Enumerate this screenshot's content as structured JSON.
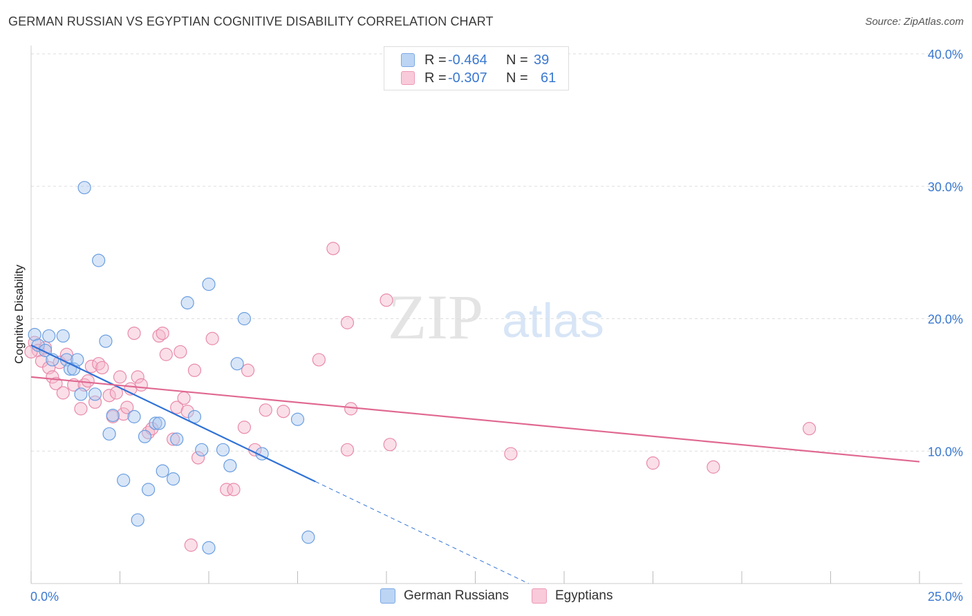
{
  "title": "GERMAN RUSSIAN VS EGYPTIAN COGNITIVE DISABILITY CORRELATION CHART",
  "source": "Source: ZipAtlas.com",
  "watermark": {
    "zip": "ZIP",
    "atlas": "atlas"
  },
  "colors": {
    "blue_fill": "#aac8f0",
    "blue_stroke": "#6a9ee0",
    "blue_line": "#2f72d6",
    "pink_fill": "#f5b8cc",
    "pink_stroke": "#e98aaa",
    "pink_line": "#e06890",
    "axis_text": "#3a78d0",
    "grid": "#dddddd"
  },
  "legend": {
    "rows": [
      {
        "r_label": "R =",
        "r_value": "-0.464",
        "n_label": "N =",
        "n_value": "39"
      },
      {
        "r_label": "R =",
        "r_value": "-0.307",
        "n_label": "N =",
        "n_value": "61"
      }
    ]
  },
  "bottom_legend": {
    "series1": "German Russians",
    "series2": "Egyptians"
  },
  "chart_data": {
    "type": "scatter",
    "title": "GERMAN RUSSIAN VS EGYPTIAN COGNITIVE DISABILITY CORRELATION CHART",
    "xlabel": "",
    "ylabel": "Cognitive Disability",
    "xlim": [
      0,
      25
    ],
    "ylim": [
      0,
      40
    ],
    "x_tick_labels": [
      "0.0%",
      "25.0%"
    ],
    "y_tick_labels": [
      "10.0%",
      "20.0%",
      "30.0%",
      "40.0%"
    ],
    "y_ticks": [
      10,
      20,
      30,
      40
    ],
    "grid": true,
    "legend_position": "top-center",
    "series": [
      {
        "name": "German Russians",
        "color": "#6a9ee0",
        "r": -0.464,
        "n": 39,
        "trend": {
          "x0": 0,
          "y0": 18.0,
          "x1": 8.0,
          "y1": 7.7,
          "dashed_to_x": 14.0,
          "dashed_to_y": 0.0
        },
        "points": [
          [
            0.1,
            18.8
          ],
          [
            0.2,
            18.0
          ],
          [
            0.4,
            17.6
          ],
          [
            0.5,
            18.7
          ],
          [
            0.6,
            16.9
          ],
          [
            0.9,
            18.7
          ],
          [
            1.0,
            16.9
          ],
          [
            1.1,
            16.2
          ],
          [
            1.2,
            16.2
          ],
          [
            1.3,
            16.9
          ],
          [
            1.4,
            14.3
          ],
          [
            1.5,
            29.9
          ],
          [
            1.8,
            14.3
          ],
          [
            1.9,
            24.4
          ],
          [
            2.1,
            18.3
          ],
          [
            2.2,
            11.3
          ],
          [
            2.3,
            12.7
          ],
          [
            2.6,
            7.8
          ],
          [
            2.9,
            12.6
          ],
          [
            3.0,
            4.8
          ],
          [
            3.2,
            11.1
          ],
          [
            3.3,
            7.1
          ],
          [
            3.5,
            12.1
          ],
          [
            3.6,
            12.1
          ],
          [
            3.7,
            8.5
          ],
          [
            4.0,
            7.9
          ],
          [
            4.1,
            10.9
          ],
          [
            4.4,
            21.2
          ],
          [
            4.6,
            12.6
          ],
          [
            4.8,
            10.1
          ],
          [
            5.0,
            2.7
          ],
          [
            5.0,
            22.6
          ],
          [
            5.4,
            10.1
          ],
          [
            5.6,
            8.9
          ],
          [
            5.8,
            16.6
          ],
          [
            6.0,
            20.0
          ],
          [
            6.5,
            9.8
          ],
          [
            7.5,
            12.4
          ],
          [
            7.8,
            3.5
          ]
        ]
      },
      {
        "name": "Egyptians",
        "color": "#e98aaa",
        "r": -0.307,
        "n": 61,
        "trend": {
          "x0": 0,
          "y0": 15.6,
          "x1": 25.0,
          "y1": 9.2
        },
        "points": [
          [
            0.1,
            18.2
          ],
          [
            0.2,
            17.6
          ],
          [
            0.3,
            16.8
          ],
          [
            0.4,
            17.8
          ],
          [
            0.5,
            16.3
          ],
          [
            0.6,
            15.6
          ],
          [
            0.7,
            15.1
          ],
          [
            0.8,
            16.7
          ],
          [
            0.9,
            14.4
          ],
          [
            1.0,
            17.3
          ],
          [
            1.2,
            15.0
          ],
          [
            1.4,
            13.2
          ],
          [
            1.5,
            15.0
          ],
          [
            1.6,
            15.3
          ],
          [
            1.7,
            16.4
          ],
          [
            1.8,
            13.7
          ],
          [
            1.9,
            16.6
          ],
          [
            2.0,
            16.3
          ],
          [
            2.2,
            14.2
          ],
          [
            2.3,
            12.6
          ],
          [
            2.4,
            14.4
          ],
          [
            2.5,
            15.6
          ],
          [
            2.6,
            12.8
          ],
          [
            2.7,
            13.3
          ],
          [
            2.8,
            14.7
          ],
          [
            2.9,
            18.9
          ],
          [
            3.0,
            15.6
          ],
          [
            3.1,
            15.0
          ],
          [
            3.3,
            11.4
          ],
          [
            3.4,
            11.7
          ],
          [
            3.6,
            18.7
          ],
          [
            3.7,
            18.9
          ],
          [
            3.8,
            17.3
          ],
          [
            4.0,
            10.9
          ],
          [
            4.1,
            13.3
          ],
          [
            4.2,
            17.5
          ],
          [
            4.3,
            14.0
          ],
          [
            4.4,
            13.0
          ],
          [
            4.5,
            2.9
          ],
          [
            4.6,
            16.1
          ],
          [
            4.7,
            9.5
          ],
          [
            5.1,
            18.5
          ],
          [
            5.5,
            7.1
          ],
          [
            5.7,
            7.1
          ],
          [
            6.0,
            11.8
          ],
          [
            6.1,
            16.1
          ],
          [
            6.3,
            10.1
          ],
          [
            6.6,
            13.1
          ],
          [
            7.1,
            13.0
          ],
          [
            8.1,
            16.9
          ],
          [
            8.5,
            25.3
          ],
          [
            8.9,
            19.7
          ],
          [
            8.9,
            10.1
          ],
          [
            9.0,
            13.2
          ],
          [
            10.0,
            21.4
          ],
          [
            10.1,
            10.5
          ],
          [
            13.5,
            9.8
          ],
          [
            17.5,
            9.1
          ],
          [
            19.2,
            8.8
          ],
          [
            21.9,
            11.7
          ],
          [
            0.0,
            17.5
          ]
        ]
      }
    ]
  }
}
